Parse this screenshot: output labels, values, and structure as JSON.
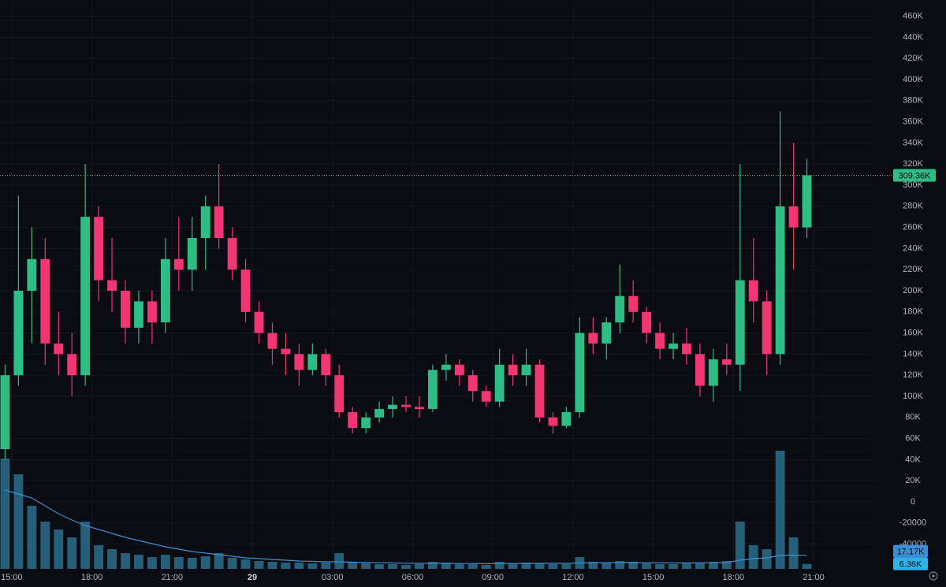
{
  "chart_data": {
    "type": "candlestick",
    "x": [
      14.75,
      15.25,
      15.75,
      16.25,
      16.75,
      17.25,
      17.75,
      18.25,
      18.75,
      19.25,
      19.75,
      20.25,
      20.75,
      21.25,
      21.75,
      22.25,
      22.75,
      23.25,
      23.75,
      24.25,
      24.75,
      25.25,
      25.75,
      26.25,
      26.75,
      27.25,
      27.75,
      28.25,
      28.75,
      29.25,
      29.75,
      30.25,
      30.75,
      31.25,
      31.75,
      32.25,
      32.75,
      33.25,
      33.75,
      34.25,
      34.75,
      35.25,
      35.75,
      36.25,
      36.75,
      37.25,
      37.75,
      38.25,
      38.75,
      39.25,
      39.75,
      40.25,
      40.75,
      41.25,
      41.75,
      42.25,
      42.75,
      43.25,
      43.75,
      44.25,
      44.75
    ],
    "open": [
      50000,
      120000,
      200000,
      230000,
      150000,
      140000,
      120000,
      270000,
      210000,
      200000,
      165000,
      190000,
      170000,
      230000,
      220000,
      250000,
      280000,
      250000,
      220000,
      180000,
      160000,
      145000,
      140000,
      125000,
      140000,
      120000,
      85000,
      70000,
      80000,
      88000,
      92000,
      90000,
      88000,
      125000,
      130000,
      120000,
      105000,
      95000,
      130000,
      120000,
      130000,
      80000,
      72000,
      85000,
      160000,
      150000,
      170000,
      195000,
      180000,
      160000,
      145000,
      150000,
      140000,
      110000,
      135000,
      130000,
      210000,
      190000,
      140000,
      280000,
      260000
    ],
    "high": [
      130000,
      290000,
      260000,
      250000,
      180000,
      160000,
      320000,
      280000,
      250000,
      210000,
      200000,
      200000,
      250000,
      270000,
      270000,
      290000,
      320000,
      260000,
      230000,
      190000,
      170000,
      160000,
      150000,
      150000,
      145000,
      130000,
      90000,
      85000,
      95000,
      100000,
      100000,
      100000,
      130000,
      140000,
      135000,
      125000,
      110000,
      145000,
      140000,
      145000,
      135000,
      85000,
      90000,
      175000,
      175000,
      175000,
      225000,
      210000,
      185000,
      170000,
      160000,
      165000,
      150000,
      145000,
      150000,
      320000,
      250000,
      200000,
      370000,
      340000,
      325000
    ],
    "low": [
      40000,
      110000,
      150000,
      130000,
      120000,
      100000,
      110000,
      190000,
      180000,
      150000,
      150000,
      150000,
      160000,
      200000,
      200000,
      220000,
      240000,
      210000,
      170000,
      150000,
      130000,
      120000,
      110000,
      120000,
      110000,
      80000,
      65000,
      65000,
      75000,
      80000,
      85000,
      80000,
      85000,
      115000,
      110000,
      95000,
      90000,
      90000,
      110000,
      110000,
      75000,
      65000,
      70000,
      80000,
      140000,
      135000,
      160000,
      170000,
      150000,
      135000,
      135000,
      130000,
      100000,
      95000,
      120000,
      105000,
      170000,
      120000,
      130000,
      220000,
      250000
    ],
    "close": [
      120000,
      200000,
      230000,
      150000,
      140000,
      120000,
      270000,
      210000,
      200000,
      165000,
      190000,
      170000,
      230000,
      220000,
      250000,
      280000,
      250000,
      220000,
      180000,
      160000,
      145000,
      140000,
      125000,
      140000,
      120000,
      85000,
      70000,
      80000,
      88000,
      92000,
      90000,
      88000,
      125000,
      130000,
      120000,
      105000,
      95000,
      130000,
      120000,
      130000,
      80000,
      72000,
      85000,
      160000,
      150000,
      170000,
      195000,
      180000,
      160000,
      145000,
      150000,
      140000,
      110000,
      135000,
      130000,
      210000,
      190000,
      140000,
      280000,
      260000,
      309360
    ],
    "volume": [
      140000,
      120000,
      80000,
      60000,
      50000,
      40000,
      60000,
      30000,
      25000,
      20000,
      18000,
      15000,
      18000,
      15000,
      14000,
      16000,
      20000,
      14000,
      12000,
      10000,
      9000,
      8000,
      8000,
      7000,
      8000,
      20000,
      9000,
      7000,
      6000,
      6000,
      5000,
      6000,
      9000,
      8000,
      6000,
      6000,
      5000,
      9000,
      7000,
      8000,
      7000,
      6000,
      6000,
      15000,
      9000,
      8000,
      10000,
      9000,
      7000,
      6000,
      6000,
      7000,
      8000,
      9000,
      10000,
      60000,
      30000,
      25000,
      150000,
      40000,
      6360
    ],
    "volume_ma": [
      100000,
      95000,
      90000,
      80000,
      70000,
      62000,
      55000,
      50000,
      45000,
      40000,
      36000,
      32000,
      28000,
      25000,
      22000,
      20000,
      18000,
      16000,
      14000,
      13000,
      12000,
      11000,
      10000,
      9500,
      9000,
      9000,
      8500,
      8000,
      7800,
      7500,
      7200,
      7000,
      7000,
      7000,
      6800,
      6800,
      6600,
      6800,
      6800,
      7000,
      7000,
      7000,
      7000,
      7500,
      7600,
      7800,
      8000,
      8000,
      7800,
      7600,
      7500,
      7500,
      7600,
      7800,
      8000,
      11000,
      13000,
      14000,
      17000,
      17500,
      17170
    ],
    "up_color": "#2ebd85",
    "down_color": "#f23673",
    "volume_color": "#2a6e8c",
    "volume_ma_color": "#3b8fd9",
    "xlim": [
      14.56,
      47.3
    ],
    "xticks": [
      {
        "value": 15,
        "label": "15:00"
      },
      {
        "value": 18,
        "label": "18:00"
      },
      {
        "value": 21,
        "label": "21:00"
      },
      {
        "value": 24,
        "label": "29"
      },
      {
        "value": 27,
        "label": "03:00"
      },
      {
        "value": 30,
        "label": "06:00"
      },
      {
        "value": 33,
        "label": "09:00"
      },
      {
        "value": 36,
        "label": "12:00"
      },
      {
        "value": 39,
        "label": "15:00"
      },
      {
        "value": 42,
        "label": "18:00"
      },
      {
        "value": 45,
        "label": "21:00"
      }
    ],
    "ylim": [
      -80600,
      475400
    ],
    "yticks": [
      {
        "value": 460000,
        "label": "460K"
      },
      {
        "value": 440000,
        "label": "440K"
      },
      {
        "value": 420000,
        "label": "420K"
      },
      {
        "value": 400000,
        "label": "400K"
      },
      {
        "value": 380000,
        "label": "380K"
      },
      {
        "value": 360000,
        "label": "360K"
      },
      {
        "value": 340000,
        "label": "340K"
      },
      {
        "value": 320000,
        "label": "320K"
      },
      {
        "value": 300000,
        "label": "300K"
      },
      {
        "value": 280000,
        "label": "280K"
      },
      {
        "value": 260000,
        "label": "260K"
      },
      {
        "value": 240000,
        "label": "240K"
      },
      {
        "value": 220000,
        "label": "220K"
      },
      {
        "value": 200000,
        "label": "200K"
      },
      {
        "value": 180000,
        "label": "180K"
      },
      {
        "value": 160000,
        "label": "160K"
      },
      {
        "value": 140000,
        "label": "140K"
      },
      {
        "value": 120000,
        "label": "120K"
      },
      {
        "value": 100000,
        "label": "100K"
      },
      {
        "value": 80000,
        "label": "80K"
      },
      {
        "value": 60000,
        "label": "60K"
      },
      {
        "value": 40000,
        "label": "40K"
      },
      {
        "value": 20000,
        "label": "20K"
      },
      0,
      -20000,
      -40000
    ],
    "y2lim": [
      0,
      700000
    ],
    "last_price": {
      "value": 309360,
      "label": "309.36K"
    },
    "volume_ma_last": {
      "value": 17170,
      "label": "17.17K"
    },
    "volume_last": {
      "value": 6360,
      "label": "6.36K"
    },
    "grid": true
  }
}
